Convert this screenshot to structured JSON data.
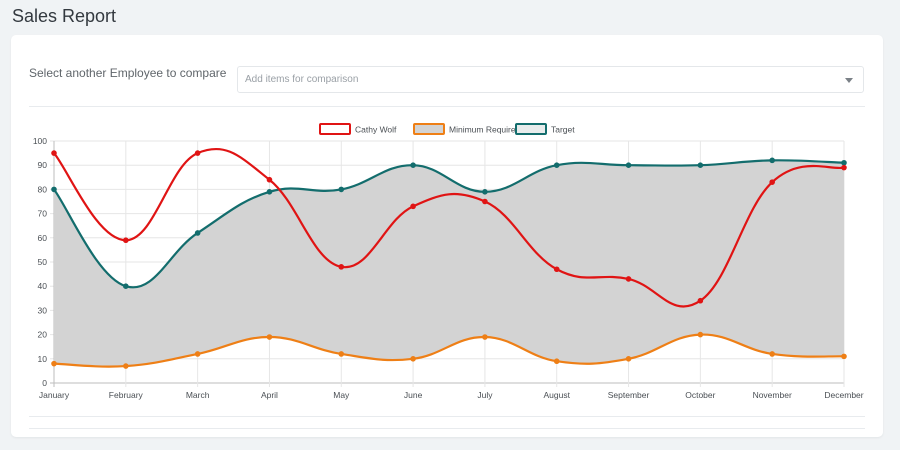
{
  "page": {
    "title": "Sales Report"
  },
  "compare": {
    "label": "Select another Employee to compare",
    "placeholder": "Add items for comparison"
  },
  "colors": {
    "employee": "#e01414",
    "minimum": "#ee7f16",
    "target": "#136d6d",
    "fill": "#d3d3d3",
    "grid": "#e6e6e6"
  },
  "chart_data": {
    "type": "line",
    "categories": [
      "January",
      "February",
      "March",
      "April",
      "May",
      "June",
      "July",
      "August",
      "September",
      "October",
      "November",
      "December"
    ],
    "ylim": [
      0,
      100
    ],
    "yticks": [
      0,
      10,
      20,
      30,
      40,
      50,
      60,
      70,
      80,
      90,
      100
    ],
    "grid": true,
    "legend_position": "top-center",
    "series": [
      {
        "name": "Cathy Wolf",
        "color": "#e01414",
        "legend_fill": "#ffffff",
        "fill": false,
        "values": [
          95,
          59,
          95,
          84,
          48,
          73,
          75,
          47,
          43,
          34,
          83,
          89
        ]
      },
      {
        "name": "Minimum Required",
        "color": "#ee7f16",
        "legend_fill": "#d3d3d3",
        "fill": true,
        "values": [
          8,
          7,
          12,
          19,
          12,
          10,
          19,
          9,
          10,
          20,
          12,
          11
        ]
      },
      {
        "name": "Target",
        "color": "#136d6d",
        "legend_fill": "#e8ecec",
        "fill": false,
        "values": [
          80,
          40,
          62,
          79,
          80,
          90,
          79,
          90,
          90,
          90,
          92,
          91
        ]
      }
    ]
  }
}
